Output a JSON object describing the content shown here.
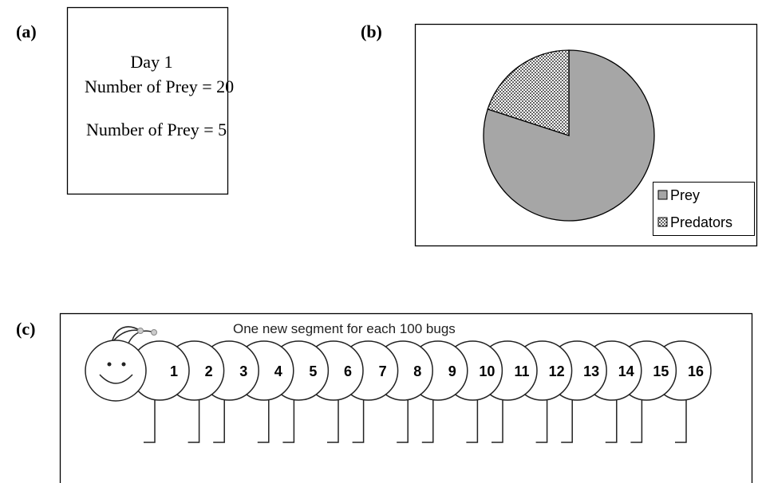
{
  "panel_a": {
    "label": "(a)",
    "day": "Day 1",
    "lines": [
      "Number of Prey = 20",
      "Number of Prey = 5"
    ]
  },
  "panel_b": {
    "label": "(b)"
  },
  "chart_data": {
    "type": "pie",
    "categories": [
      "Prey",
      "Predators"
    ],
    "values": [
      80,
      20
    ],
    "colors": [
      "#a6a6a6",
      "dotted"
    ],
    "legend": "bottom-right"
  },
  "panel_c": {
    "label": "(c)",
    "title": "One new segment  for each 100 bugs",
    "segments": [
      1,
      2,
      3,
      4,
      5,
      6,
      7,
      8,
      9,
      10,
      11,
      12,
      13,
      14,
      15,
      16
    ]
  }
}
